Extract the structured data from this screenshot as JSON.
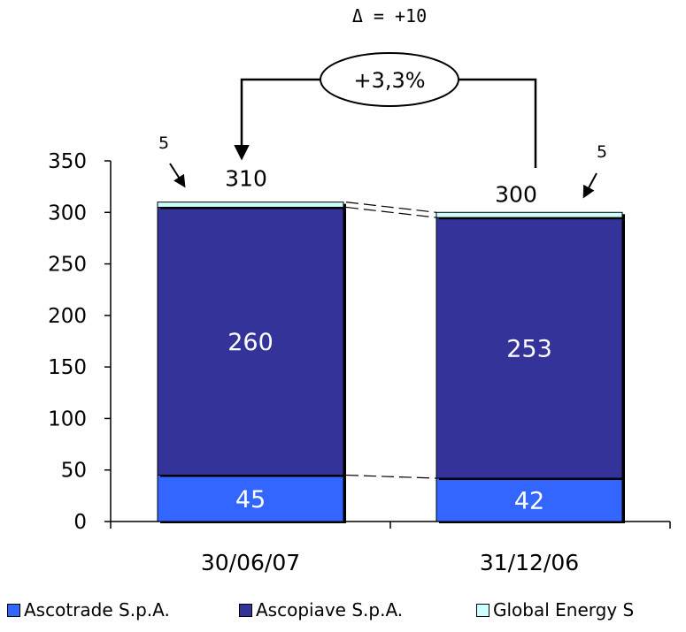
{
  "chart_data": {
    "type": "bar",
    "stacked": true,
    "categories": [
      "30/06/07",
      "31/12/06"
    ],
    "series": [
      {
        "name": "Ascotrade S.p.A.",
        "values": [
          45,
          42
        ],
        "color": "#3366ff",
        "label_color": "#ffffff"
      },
      {
        "name": "Ascopiave S.p.A.",
        "values": [
          260,
          253
        ],
        "color": "#333399",
        "label_color": "#ffffff"
      },
      {
        "name": "Global Energy S",
        "values": [
          5,
          5
        ],
        "color": "#ccffff"
      }
    ],
    "totals": [
      "310",
      "300"
    ],
    "top_segment_labels": [
      "5",
      "5"
    ],
    "ylim": [
      0,
      350
    ],
    "yticks": [
      "0",
      "50",
      "100",
      "150",
      "200",
      "250",
      "300",
      "350"
    ],
    "delta_label": "Δ = +10",
    "growth_label": "+3,3%",
    "legend_position": "bottom",
    "grid": false
  }
}
